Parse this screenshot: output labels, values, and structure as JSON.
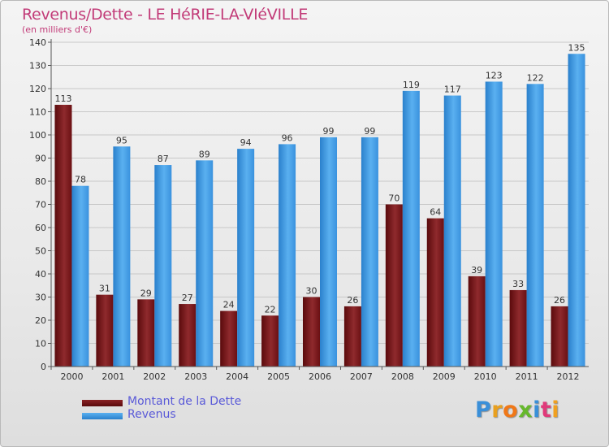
{
  "title": "Revenus/Dette - LE HéRIE-LA-VIéVILLE",
  "subtitle": "(en milliers d'€)",
  "logo": "Proxiti",
  "colors": {
    "debt": "#7a1518",
    "revenue": "#3d9ae4",
    "title": "#c23b78",
    "legend_text": "#5a5ad8"
  },
  "chart_data": {
    "type": "bar",
    "categories": [
      "2000",
      "2001",
      "2002",
      "2003",
      "2004",
      "2005",
      "2006",
      "2007",
      "2008",
      "2009",
      "2010",
      "2011",
      "2012"
    ],
    "series": [
      {
        "name": "Montant de la Dette",
        "values": [
          113,
          31,
          29,
          27,
          24,
          22,
          30,
          26,
          70,
          64,
          39,
          33,
          26
        ]
      },
      {
        "name": "Revenus",
        "values": [
          78,
          95,
          87,
          89,
          94,
          96,
          99,
          99,
          119,
          117,
          123,
          122,
          135
        ]
      }
    ],
    "ylim": [
      0,
      140
    ],
    "yticks": [
      0,
      10,
      20,
      30,
      40,
      50,
      60,
      70,
      80,
      90,
      100,
      110,
      120,
      130,
      140
    ],
    "grid": true,
    "legend": "bottom-left"
  }
}
